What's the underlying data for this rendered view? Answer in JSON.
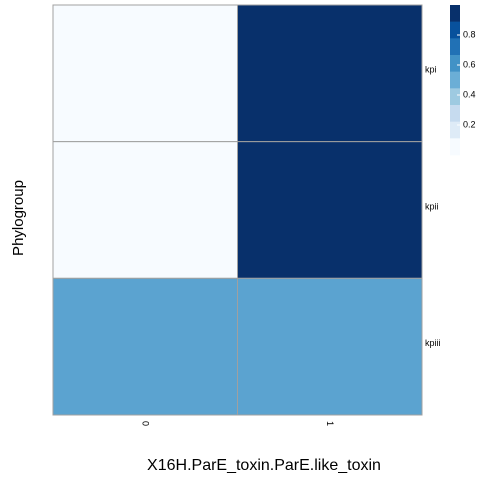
{
  "chart_data": {
    "type": "heatmap",
    "xlabel": "X16H.ParE_toxin.ParE.like_toxin",
    "ylabel": "Phylogroup",
    "x_categories": [
      "0",
      "1"
    ],
    "y_categories": [
      "kpi",
      "kpii",
      "kpiii"
    ],
    "values": [
      [
        0.0,
        1.0
      ],
      [
        0.0,
        1.0
      ],
      [
        0.5,
        0.5
      ]
    ],
    "colors": {
      "cells": [
        [
          "#f7fbff",
          "#08306b"
        ],
        [
          "#f7fbff",
          "#08306b"
        ],
        [
          "#5ba3d0",
          "#5ba3d0"
        ]
      ],
      "grid_line": "#a0a0a0"
    },
    "legend": {
      "position": "top-right",
      "tick_labels": [
        "0.2",
        "0.4",
        "0.6",
        "0.8"
      ],
      "tick_values": [
        0.2,
        0.4,
        0.6,
        0.8
      ],
      "range": [
        0,
        1
      ],
      "steps": [
        {
          "value": 0.9,
          "color": "#08306b"
        },
        {
          "value": 0.8,
          "color": "#08519c"
        },
        {
          "value": 0.7,
          "color": "#2171b5"
        },
        {
          "value": 0.6,
          "color": "#4292c6"
        },
        {
          "value": 0.5,
          "color": "#6baed6"
        },
        {
          "value": 0.4,
          "color": "#9ecae1"
        },
        {
          "value": 0.3,
          "color": "#c6dbef"
        },
        {
          "value": 0.2,
          "color": "#deebf7"
        },
        {
          "value": 0.1,
          "color": "#f7fbff"
        }
      ]
    }
  }
}
